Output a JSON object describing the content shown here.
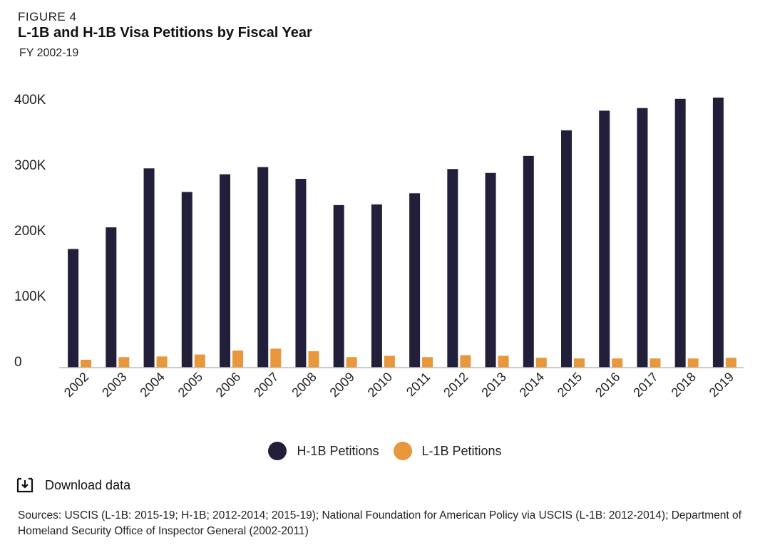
{
  "header": {
    "figure_label": "FIGURE 4",
    "title": "L-1B and H-1B Visa Petitions by Fiscal Year",
    "subtitle": "FY 2002-19"
  },
  "legend": {
    "h1b": "H-1B Petitions",
    "l1b": "L-1B Petitions"
  },
  "download": {
    "label": "Download data",
    "icon": "download-icon"
  },
  "sources": "Sources: USCIS (L-1B: 2015-19; H-1B; 2012-2014; 2015-19); National Foundation for American Policy via USCIS (L-1B: 2012-2014); Department of Homeland Security Office of Inspector General (2002-2011)",
  "colors": {
    "h1b": "#221f3b",
    "l1b": "#e8973a",
    "axis": "#bbbbbb",
    "text": "#222222"
  },
  "chart_data": {
    "type": "bar",
    "title": "L-1B and H-1B Visa Petitions by Fiscal Year",
    "subtitle": "FY 2002-19",
    "xlabel": "",
    "ylabel": "",
    "ylim": [
      0,
      420000
    ],
    "yticks": [
      0,
      100000,
      200000,
      300000,
      400000
    ],
    "ytick_labels": [
      "0",
      "100K",
      "200K",
      "300K",
      "400K"
    ],
    "categories": [
      "2002",
      "2003",
      "2004",
      "2005",
      "2006",
      "2007",
      "2008",
      "2009",
      "2010",
      "2011",
      "2012",
      "2013",
      "2014",
      "2015",
      "2016",
      "2017",
      "2018",
      "2019"
    ],
    "series": [
      {
        "name": "H-1B Petitions",
        "values": [
          181000,
          214000,
          304000,
          268000,
          295000,
          306000,
          288000,
          248000,
          249000,
          266000,
          303000,
          297000,
          323000,
          362000,
          392000,
          396000,
          410000,
          412000
        ]
      },
      {
        "name": "L-1B Petitions",
        "values": [
          12000,
          16000,
          17000,
          20000,
          26000,
          29000,
          25000,
          16000,
          18000,
          16000,
          19000,
          18000,
          15000,
          14000,
          14000,
          14000,
          14000,
          15000
        ]
      }
    ],
    "grid": false,
    "legend_position": "bottom-center"
  }
}
